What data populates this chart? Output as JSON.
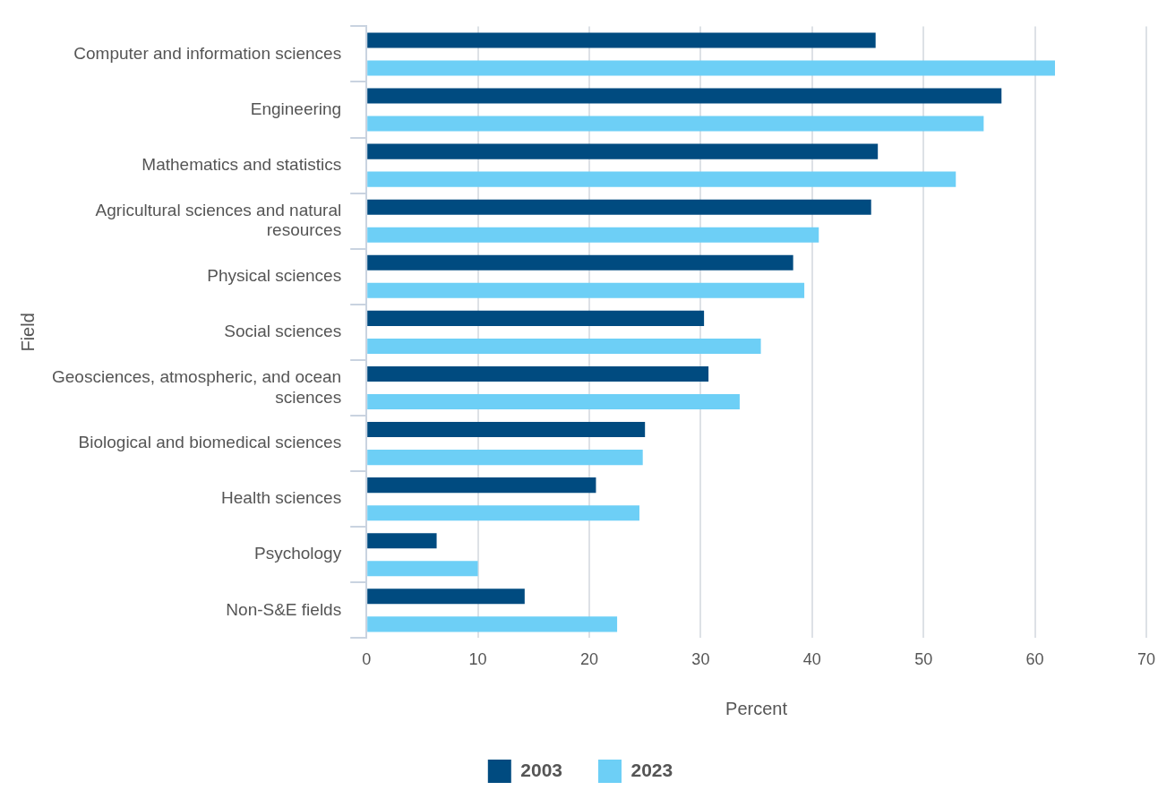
{
  "chart_data": {
    "type": "bar",
    "orientation": "horizontal",
    "xlabel": "Percent",
    "ylabel": "Field",
    "categories": [
      "Computer and information sciences",
      "Engineering",
      "Mathematics and statistics",
      "Agricultural sciences and natural resources",
      "Physical sciences",
      "Social sciences",
      "Geosciences, atmospheric, and ocean sciences",
      "Biological and biomedical sciences",
      "Health sciences",
      "Psychology",
      "Non-S&E fields"
    ],
    "series": [
      {
        "name": "2003",
        "color": "#004b80",
        "values": [
          45.7,
          57.0,
          45.9,
          45.3,
          38.3,
          30.3,
          30.7,
          25.0,
          20.6,
          6.3,
          14.2
        ]
      },
      {
        "name": "2023",
        "color": "#6dcff6",
        "values": [
          61.8,
          55.4,
          52.9,
          40.6,
          39.3,
          35.4,
          33.5,
          24.8,
          24.5,
          10.0,
          22.5
        ]
      }
    ],
    "xlim": [
      0,
      70
    ],
    "xticks": [
      0,
      10,
      20,
      30,
      40,
      50,
      60,
      70
    ],
    "grid": "x",
    "legend": "bottom"
  }
}
